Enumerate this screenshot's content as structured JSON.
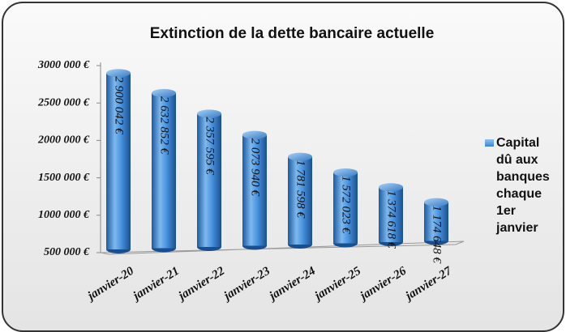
{
  "chart_data": {
    "type": "bar",
    "title": "Extinction de la dette bancaire actuelle",
    "categories": [
      "janvier-20",
      "janvier-21",
      "janvier-22",
      "janvier-23",
      "janvier-24",
      "janvier-25",
      "janvier-26",
      "janvier-27"
    ],
    "series": [
      {
        "name": "Capital dû aux banques chaque 1er janvier",
        "color": "#3a86d4",
        "values": [
          2900042,
          2632852,
          2357595,
          2073940,
          1781598,
          1572023,
          1374618,
          1174648
        ],
        "value_labels": [
          "2 900 042 €",
          "2 632 852 €",
          "2 357 595 €",
          "2 073 940 €",
          "1 781 598 €",
          "1 572 023 €",
          "1 374 618 €",
          "1 174 648 €"
        ]
      }
    ],
    "ylim": [
      500000,
      3000000
    ],
    "yticks": [
      {
        "value": 500000,
        "label": "500 000 €"
      },
      {
        "value": 1000000,
        "label": "1000 000 €"
      },
      {
        "value": 1500000,
        "label": "1500 000 €"
      },
      {
        "value": 2000000,
        "label": "2000 000 €"
      },
      {
        "value": 2500000,
        "label": "2500 000 €"
      },
      {
        "value": 3000000,
        "label": "3000 000 €"
      }
    ],
    "legend": "right"
  }
}
